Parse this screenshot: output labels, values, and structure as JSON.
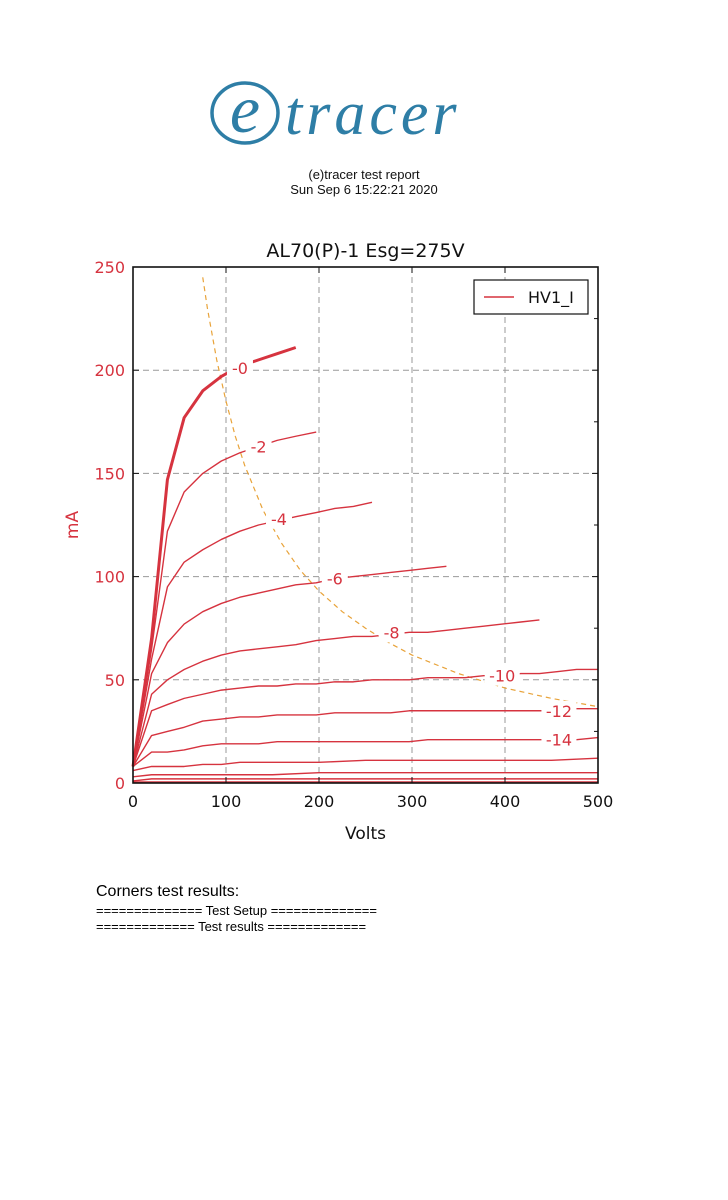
{
  "logo": {
    "text": "(e)tracer",
    "color": "#2e7ea6"
  },
  "report": {
    "title": "(e)tracer test report",
    "date": "Sun Sep 6 15:22:21 2020"
  },
  "chart_data": {
    "type": "line",
    "title": "AL70(P)-1 Esg=275V",
    "xlabel": "Volts",
    "ylabel": "mA",
    "xlim": [
      0,
      500
    ],
    "ylim": [
      0,
      250
    ],
    "xticks": [
      0,
      100,
      200,
      300,
      400,
      500
    ],
    "yticks": [
      0,
      50,
      100,
      150,
      200,
      250
    ],
    "grid": true,
    "legend": {
      "position": "top-right",
      "entries": [
        "HV1_I"
      ]
    },
    "colors": {
      "curves": "#d6333f",
      "axis_label": "#d6333f",
      "load_line": "#e8a33a"
    },
    "series": [
      {
        "label": "-0",
        "bold": true,
        "x": [
          0,
          20,
          37,
          55,
          75,
          95,
          115,
          135,
          155,
          175
        ],
        "y": [
          8,
          70,
          147,
          177,
          190,
          197,
          202,
          205,
          208,
          211
        ]
      },
      {
        "label": "-2",
        "x": [
          0,
          20,
          37,
          55,
          75,
          95,
          115,
          135,
          155,
          175,
          197
        ],
        "y": [
          8,
          65,
          122,
          141,
          150,
          156,
          160,
          163,
          166,
          168,
          170
        ]
      },
      {
        "label": "-4",
        "x": [
          0,
          20,
          37,
          55,
          75,
          95,
          115,
          135,
          155,
          175,
          197,
          217,
          237,
          257
        ],
        "y": [
          8,
          60,
          95,
          107,
          113,
          118,
          122,
          125,
          127,
          129,
          131,
          133,
          134,
          136
        ]
      },
      {
        "label": "-6",
        "x": [
          0,
          20,
          37,
          55,
          75,
          95,
          115,
          135,
          155,
          175,
          197,
          217,
          237,
          257,
          277,
          297,
          317,
          337
        ],
        "y": [
          8,
          53,
          68,
          77,
          83,
          87,
          90,
          92,
          94,
          96,
          97,
          99,
          100,
          101,
          102,
          103,
          104,
          105
        ]
      },
      {
        "label": "-8",
        "x": [
          0,
          20,
          37,
          55,
          75,
          95,
          115,
          135,
          155,
          175,
          197,
          217,
          237,
          257,
          277,
          297,
          317,
          337,
          357,
          377,
          397,
          417,
          437
        ],
        "y": [
          8,
          43,
          50,
          55,
          59,
          62,
          64,
          65,
          66,
          67,
          69,
          70,
          71,
          71,
          72,
          73,
          73,
          74,
          75,
          76,
          77,
          78,
          79
        ]
      },
      {
        "label": "-10",
        "x": [
          0,
          20,
          37,
          55,
          75,
          95,
          115,
          135,
          155,
          175,
          197,
          217,
          237,
          257,
          277,
          297,
          317,
          337,
          357,
          377,
          397,
          417,
          437,
          457,
          477,
          500
        ],
        "y": [
          8,
          35,
          38,
          41,
          43,
          45,
          46,
          47,
          47,
          48,
          48,
          49,
          49,
          50,
          50,
          50,
          51,
          51,
          51,
          52,
          52,
          53,
          53,
          54,
          55,
          55
        ]
      },
      {
        "label": "-12",
        "x": [
          0,
          20,
          37,
          55,
          75,
          95,
          115,
          135,
          155,
          175,
          197,
          217,
          237,
          257,
          277,
          297,
          317,
          337,
          357,
          377,
          397,
          417,
          437,
          457,
          477,
          500
        ],
        "y": [
          8,
          23,
          25,
          27,
          30,
          31,
          32,
          32,
          33,
          33,
          33,
          34,
          34,
          34,
          34,
          35,
          35,
          35,
          35,
          35,
          35,
          35,
          35,
          35,
          36,
          36
        ]
      },
      {
        "label": "-14",
        "x": [
          0,
          20,
          37,
          55,
          75,
          95,
          115,
          135,
          155,
          175,
          197,
          217,
          237,
          257,
          277,
          297,
          317,
          337,
          357,
          377,
          397,
          417,
          437,
          457,
          477,
          500
        ],
        "y": [
          8,
          15,
          15,
          16,
          18,
          19,
          19,
          19,
          20,
          20,
          20,
          20,
          20,
          20,
          20,
          20,
          21,
          21,
          21,
          21,
          21,
          21,
          21,
          21,
          21,
          22
        ]
      },
      {
        "label": "",
        "x": [
          0,
          20,
          37,
          55,
          75,
          95,
          115,
          135,
          155,
          175,
          200,
          250,
          300,
          350,
          400,
          450,
          500
        ],
        "y": [
          6,
          8,
          8,
          8,
          9,
          9,
          10,
          10,
          10,
          10,
          10,
          11,
          11,
          11,
          11,
          11,
          12
        ]
      },
      {
        "label": "",
        "x": [
          0,
          20,
          40,
          60,
          100,
          150,
          200,
          300,
          400,
          500
        ],
        "y": [
          3,
          4,
          4,
          4,
          4,
          4,
          5,
          5,
          5,
          5
        ]
      },
      {
        "label": "",
        "x": [
          0,
          20,
          40,
          100,
          200,
          300,
          400,
          500
        ],
        "y": [
          1,
          2,
          2,
          2,
          2,
          2,
          2,
          2
        ]
      },
      {
        "label": "",
        "x": [
          0,
          100,
          200,
          300,
          400,
          500
        ],
        "y": [
          0.5,
          0.5,
          0.5,
          0.5,
          0.5,
          0.5
        ]
      }
    ],
    "load_line": {
      "x": [
        75,
        80,
        90,
        100,
        110,
        120,
        140,
        160,
        180,
        200,
        225,
        250,
        275,
        300,
        350,
        400,
        450,
        500
      ],
      "y": [
        245,
        230,
        205,
        185,
        168,
        154,
        132,
        116,
        103,
        93,
        83,
        75,
        68,
        62,
        53,
        46,
        41,
        37
      ]
    },
    "curve_labels": [
      {
        "text": "-0",
        "x": 115,
        "y": 201
      },
      {
        "text": "-2",
        "x": 135,
        "y": 163
      },
      {
        "text": "-4",
        "x": 157,
        "y": 128
      },
      {
        "text": "-6",
        "x": 217,
        "y": 99
      },
      {
        "text": "-8",
        "x": 278,
        "y": 73
      },
      {
        "text": "-10",
        "x": 397,
        "y": 52
      },
      {
        "text": "-12",
        "x": 458,
        "y": 35
      },
      {
        "text": "-14",
        "x": 458,
        "y": 21
      }
    ]
  },
  "results": {
    "heading": "Corners test results:",
    "setup_line": "============== Test Setup ==============",
    "results_line": "============= Test results ============="
  }
}
